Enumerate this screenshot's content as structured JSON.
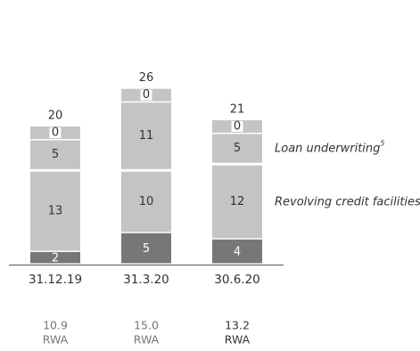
{
  "chart_data": {
    "type": "bar",
    "stacked": true,
    "categories": [
      "31.12.19",
      "31.3.20",
      "30.6.20"
    ],
    "series": [
      {
        "name": "",
        "color": "#777777",
        "values": [
          2,
          5,
          4
        ]
      },
      {
        "name": "Revolving credit facilities",
        "color": "#c4c4c4",
        "values": [
          13,
          10,
          12
        ]
      },
      {
        "name": "Loan underwriting",
        "color": "#c4c4c4",
        "values": [
          5,
          11,
          5
        ]
      },
      {
        "name": "",
        "color": "#ffffff",
        "values": [
          0,
          0,
          0
        ]
      }
    ],
    "totals": [
      20,
      26,
      21
    ],
    "legend": {
      "series_labels": [
        {
          "series": 2,
          "text": "Loan underwriting",
          "superscript": "5"
        },
        {
          "series": 1,
          "text": "Revolving credit facilities"
        }
      ]
    },
    "rwa": [
      {
        "value": "10.9",
        "label": "RWA"
      },
      {
        "value": "15.0",
        "label": "RWA"
      },
      {
        "value": "13.2",
        "label": "RWA"
      }
    ]
  }
}
